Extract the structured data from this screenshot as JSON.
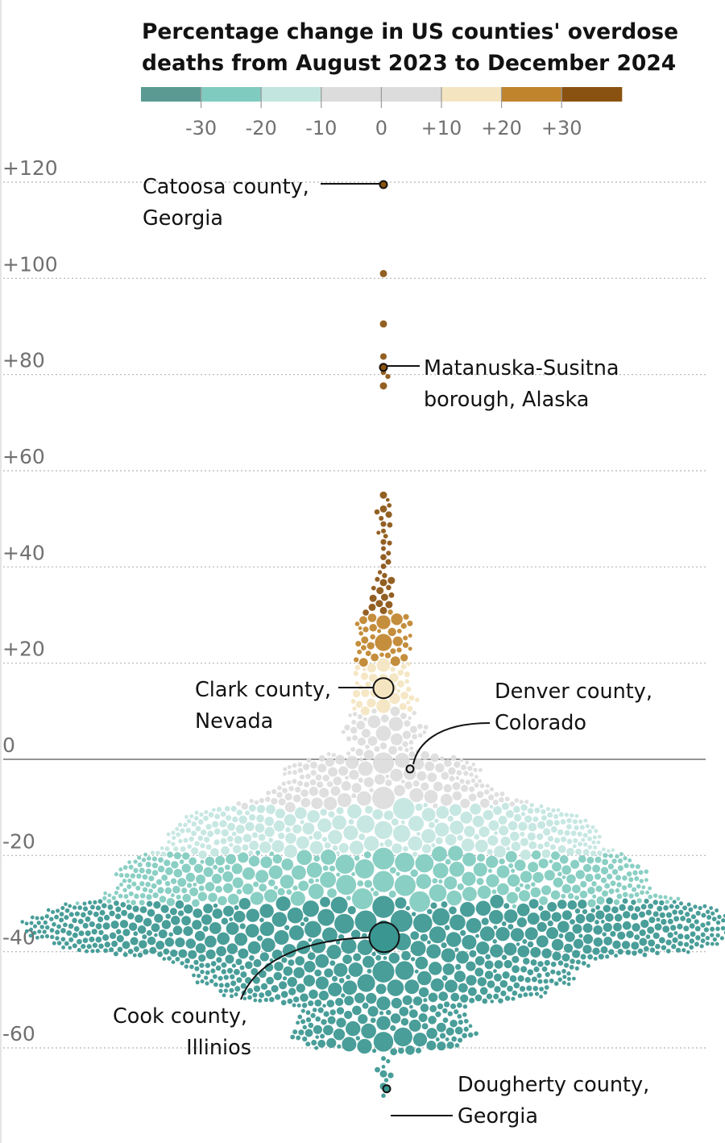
{
  "chart_data": {
    "type": "scatter",
    "subtype": "beeswarm",
    "title_lines": [
      "Percentage change in US counties' overdose",
      "deaths from August 2023 to December 2024"
    ],
    "color_scale": {
      "colors": [
        "#5a9a93",
        "#80cbbf",
        "#c2e5df",
        "#dcdcdc",
        "#dcdcdc",
        "#f4e5c0",
        "#c0842c",
        "#8a5210"
      ],
      "tick_labels": [
        "-30",
        "-20",
        "-10",
        "0",
        "+10",
        "+20",
        "+30"
      ],
      "tick_values": [
        -30,
        -20,
        -10,
        0,
        10,
        20,
        30
      ]
    },
    "y_axis": {
      "ticks": [
        120,
        100,
        80,
        60,
        40,
        20,
        0,
        -20,
        -40,
        -60
      ],
      "tick_labels": [
        "+120",
        "+100",
        "+80",
        "+60",
        "+40",
        "+20",
        "0",
        "-20",
        "-40",
        "-60"
      ],
      "range": [
        -70,
        125
      ]
    },
    "annotations": [
      {
        "id": "catoosa",
        "lines": [
          "Catoosa county,",
          "Georgia"
        ],
        "value": 119.5,
        "side": "left",
        "highlight_size": "small",
        "fill": "#8a5210"
      },
      {
        "id": "matanuska",
        "lines": [
          "Matanuska-Susitna",
          "borough, Alaska"
        ],
        "value": 81.5,
        "side": "right",
        "highlight_size": "small",
        "fill": "#8a5210"
      },
      {
        "id": "clark",
        "lines": [
          "Clark county,",
          "Nevada"
        ],
        "value": 14.8,
        "side": "left",
        "highlight_size": "large",
        "fill": "#f4e5c0"
      },
      {
        "id": "denver",
        "lines": [
          "Denver county,",
          "Colorado"
        ],
        "value": -2,
        "side": "right",
        "highlight_size": "small",
        "fill": "#dcdcdc"
      },
      {
        "id": "cook",
        "lines": [
          "Cook county,",
          "Illinios"
        ],
        "value": -37,
        "side": "left",
        "highlight_size": "largest",
        "fill": "#3a9690"
      },
      {
        "id": "dougherty",
        "lines": [
          "Dougherty county,",
          "Georgia"
        ],
        "value": -68.5,
        "side": "right",
        "highlight_size": "small",
        "fill": "#3a9690"
      }
    ],
    "distribution": [
      {
        "lo": 117,
        "hi": 121,
        "count": 1
      },
      {
        "lo": 98,
        "hi": 101,
        "count": 1
      },
      {
        "lo": 90,
        "hi": 93,
        "count": 1
      },
      {
        "lo": 76,
        "hi": 84,
        "count": 4
      },
      {
        "lo": 54,
        "hi": 56,
        "count": 1
      },
      {
        "lo": 45,
        "hi": 54,
        "count": 12
      },
      {
        "lo": 38,
        "hi": 45,
        "count": 8
      },
      {
        "lo": 30,
        "hi": 38,
        "count": 14
      },
      {
        "lo": 20,
        "hi": 30,
        "count": 38
      },
      {
        "lo": 10,
        "hi": 20,
        "count": 40
      },
      {
        "lo": 0,
        "hi": 10,
        "count": 50
      },
      {
        "lo": -10,
        "hi": 0,
        "count": 140
      },
      {
        "lo": -20,
        "hi": -10,
        "count": 260
      },
      {
        "lo": -30,
        "hi": -20,
        "count": 300
      },
      {
        "lo": -40,
        "hi": -30,
        "count": 460
      },
      {
        "lo": -50,
        "hi": -40,
        "count": 250
      },
      {
        "lo": -60,
        "hi": -50,
        "count": 110
      },
      {
        "lo": -68,
        "hi": -60,
        "count": 10
      },
      {
        "lo": -70,
        "hi": -68,
        "count": 1
      }
    ]
  }
}
